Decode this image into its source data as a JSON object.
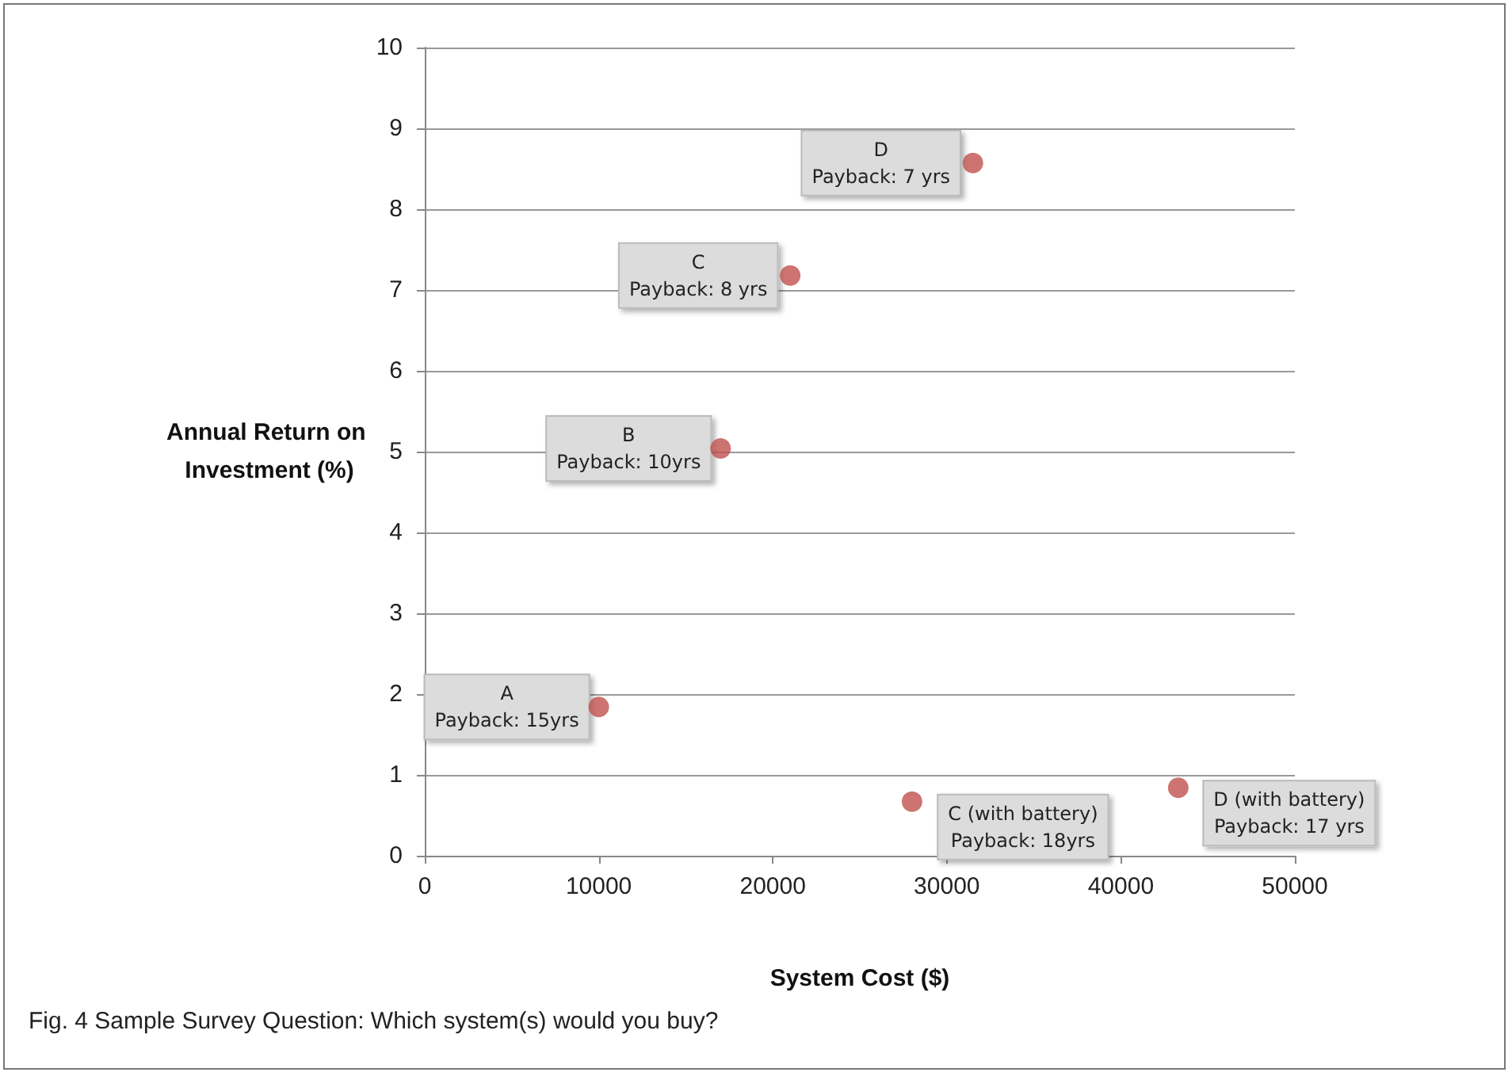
{
  "chart_data": {
    "type": "scatter",
    "xlabel": "System Cost ($)",
    "ylabel": "Annual Return on Investment (%)",
    "x": [
      10000,
      17000,
      21000,
      31500,
      28000,
      43300
    ],
    "values": [
      1.84,
      5.04,
      7.18,
      8.57,
      0.67,
      0.84
    ],
    "color": "#c0504d",
    "marker": "circle",
    "xlim": [
      0,
      50000
    ],
    "xticks": [
      0,
      10000,
      20000,
      30000,
      40000,
      50000
    ],
    "ylim": [
      0,
      10
    ],
    "yticks": [
      0,
      1,
      2,
      3,
      4,
      5,
      6,
      7,
      8,
      9,
      10
    ],
    "grid": "y",
    "annotations": [
      {
        "text": "A\nPayback: 15yrs",
        "x": 10000,
        "y": 1.84
      },
      {
        "text": "B\nPayback: 10yrs",
        "x": 17000,
        "y": 5.04
      },
      {
        "text": "C\nPayback: 8 yrs",
        "x": 21000,
        "y": 7.18
      },
      {
        "text": "D\nPayback: 7 yrs",
        "x": 31500,
        "y": 8.57
      },
      {
        "text": "C (with battery)\nPayback: 18yrs",
        "x": 28000,
        "y": 0.67
      },
      {
        "text": "D (with battery)\nPayback: 17 yrs",
        "x": 43300,
        "y": 0.84
      },
      "Fig. 4 Sample Survey Question: Which system(s) would you buy?"
    ]
  }
}
